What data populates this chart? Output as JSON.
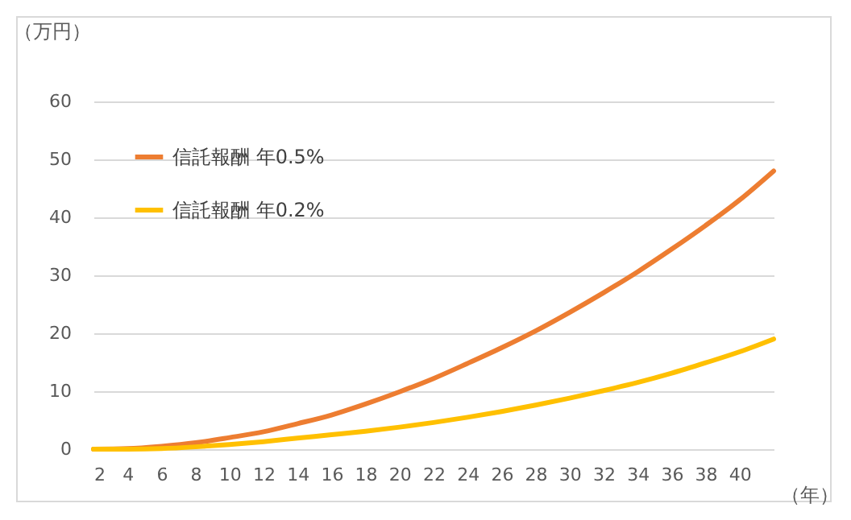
{
  "chart_data": {
    "type": "line",
    "ylabel": "（万円）",
    "xlabel": "（年）",
    "x": [
      2,
      4,
      6,
      8,
      10,
      12,
      14,
      16,
      18,
      20,
      22,
      24,
      26,
      28,
      30,
      32,
      34,
      36,
      38,
      40,
      42
    ],
    "series": [
      {
        "name": "信託報酬 年0.5%",
        "color": "#ed7d31",
        "values": [
          0,
          0.1,
          0.5,
          1.1,
          2,
          3,
          4.4,
          5.9,
          7.8,
          9.9,
          12.2,
          14.8,
          17.5,
          20.4,
          23.6,
          27,
          30.6,
          34.5,
          38.6,
          43,
          48
        ]
      },
      {
        "name": "信託報酬 年0.2%",
        "color": "#ffc000",
        "values": [
          0,
          0,
          0.1,
          0.4,
          0.8,
          1.3,
          1.9,
          2.5,
          3.1,
          3.8,
          4.6,
          5.5,
          6.5,
          7.6,
          8.8,
          10.1,
          11.5,
          13.1,
          14.9,
          16.8,
          19
        ]
      }
    ],
    "xlim": [
      2,
      42
    ],
    "xticks": [
      2,
      4,
      6,
      8,
      10,
      12,
      14,
      16,
      18,
      20,
      22,
      24,
      26,
      28,
      30,
      32,
      34,
      36,
      38,
      40
    ],
    "ylim": [
      0,
      60
    ],
    "yticks": [
      0,
      10,
      20,
      30,
      40,
      50,
      60
    ],
    "grid": "y",
    "legend": "top left",
    "marker": "none",
    "line_style": "solid"
  }
}
